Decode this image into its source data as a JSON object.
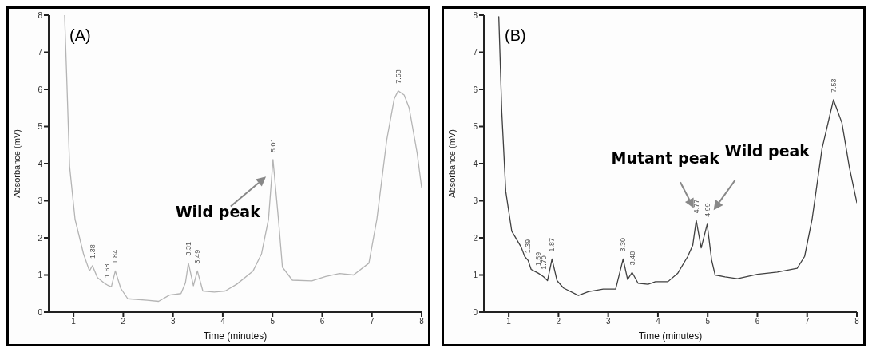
{
  "chart_data": [
    {
      "type": "line",
      "title": "(A)",
      "xlabel": "Time (minutes)",
      "ylabel": "Absorbance (mV)",
      "color": "#b4b4b4",
      "grid": false,
      "legend": false,
      "marker": "none",
      "line_style": "solid",
      "xlim": [
        0.5,
        8
      ],
      "ylim": [
        0,
        8
      ],
      "xticks": [
        1,
        2,
        3,
        4,
        5,
        6,
        7,
        8
      ],
      "yticks": [
        0,
        1,
        2,
        3,
        4,
        5,
        6,
        7,
        8
      ],
      "x": [
        0.82,
        0.86,
        0.92,
        1.03,
        1.2,
        1.32,
        1.38,
        1.48,
        1.64,
        1.68,
        1.76,
        1.84,
        1.95,
        2.09,
        2.48,
        2.71,
        2.93,
        3.16,
        3.25,
        3.31,
        3.41,
        3.49,
        3.6,
        3.83,
        4.05,
        4.28,
        4.61,
        4.78,
        4.92,
        5.01,
        5.12,
        5.2,
        5.4,
        5.79,
        6.07,
        6.35,
        6.63,
        6.94,
        7.1,
        7.3,
        7.45,
        7.53,
        7.65,
        7.75,
        7.91,
        8.0
      ],
      "values": [
        8,
        6.43,
        3.93,
        2.5,
        1.57,
        1.11,
        1.25,
        0.93,
        0.76,
        0.73,
        0.68,
        1.11,
        0.64,
        0.36,
        0.32,
        0.29,
        0.46,
        0.5,
        0.79,
        1.32,
        0.71,
        1.11,
        0.57,
        0.54,
        0.57,
        0.75,
        1.11,
        1.57,
        2.5,
        4.11,
        2.5,
        1.21,
        0.86,
        0.84,
        0.96,
        1.04,
        1.0,
        1.32,
        2.5,
        4.64,
        5.75,
        5.96,
        5.85,
        5.5,
        4.29,
        3.36
      ],
      "annotations": [
        "Wild peak",
        {
          "text": "1.38",
          "x": 1.38,
          "y": 1.25
        },
        {
          "text": "1.68",
          "x": 1.68,
          "y": 0.73
        },
        {
          "text": "1.84",
          "x": 1.84,
          "y": 1.11
        },
        {
          "text": "3.31",
          "x": 3.31,
          "y": 1.32
        },
        {
          "text": "3.49",
          "x": 3.49,
          "y": 1.11
        },
        {
          "text": "5.01",
          "x": 5.01,
          "y": 4.11
        },
        {
          "text": "7.53",
          "x": 7.53,
          "y": 5.96
        }
      ]
    },
    {
      "type": "line",
      "title": "(B)",
      "xlabel": "Time (minutes)",
      "ylabel": "Absorbance (mV)",
      "color": "#404040",
      "grid": false,
      "legend": false,
      "marker": "none",
      "line_style": "solid",
      "xlim": [
        0.5,
        8
      ],
      "ylim": [
        0,
        8
      ],
      "xticks": [
        1,
        2,
        3,
        4,
        5,
        6,
        7,
        8
      ],
      "yticks": [
        0,
        1,
        2,
        3,
        4,
        5,
        6,
        7,
        8
      ],
      "x": [
        0.8,
        0.86,
        0.94,
        1.06,
        1.25,
        1.32,
        1.39,
        1.45,
        1.52,
        1.59,
        1.65,
        1.7,
        1.78,
        1.87,
        1.97,
        2.1,
        2.4,
        2.6,
        2.9,
        3.15,
        3.3,
        3.39,
        3.48,
        3.6,
        3.8,
        3.95,
        4.2,
        4.4,
        4.6,
        4.7,
        4.77,
        4.87,
        4.99,
        5.08,
        5.15,
        5.35,
        5.6,
        6.0,
        6.4,
        6.8,
        6.95,
        7.1,
        7.3,
        7.53,
        7.7,
        7.85,
        8.0
      ],
      "values": [
        7.96,
        5.39,
        3.25,
        2.18,
        1.75,
        1.5,
        1.39,
        1.15,
        1.1,
        1.05,
        1.0,
        0.95,
        0.85,
        1.43,
        0.85,
        0.65,
        0.45,
        0.55,
        0.62,
        0.62,
        1.43,
        0.88,
        1.07,
        0.78,
        0.75,
        0.82,
        0.82,
        1.05,
        1.5,
        1.8,
        2.47,
        1.73,
        2.37,
        1.4,
        1.0,
        0.95,
        0.9,
        1.02,
        1.08,
        1.18,
        1.5,
        2.5,
        4.4,
        5.72,
        5.1,
        3.9,
        2.95
      ],
      "annotations": [
        "Mutant peak",
        "Wild peak",
        {
          "text": "1.39",
          "x": 1.39,
          "y": 1.39
        },
        {
          "text": "1.59",
          "x": 1.59,
          "y": 1.05
        },
        {
          "text": "1.70",
          "x": 1.7,
          "y": 0.95
        },
        {
          "text": "1.87",
          "x": 1.87,
          "y": 1.43
        },
        {
          "text": "3.30",
          "x": 3.3,
          "y": 1.43
        },
        {
          "text": "3.48",
          "x": 3.48,
          "y": 1.07
        },
        {
          "text": "4.77",
          "x": 4.77,
          "y": 2.47
        },
        {
          "text": "4.99",
          "x": 4.99,
          "y": 2.37
        },
        {
          "text": "7.53",
          "x": 7.53,
          "y": 5.72
        }
      ]
    }
  ]
}
